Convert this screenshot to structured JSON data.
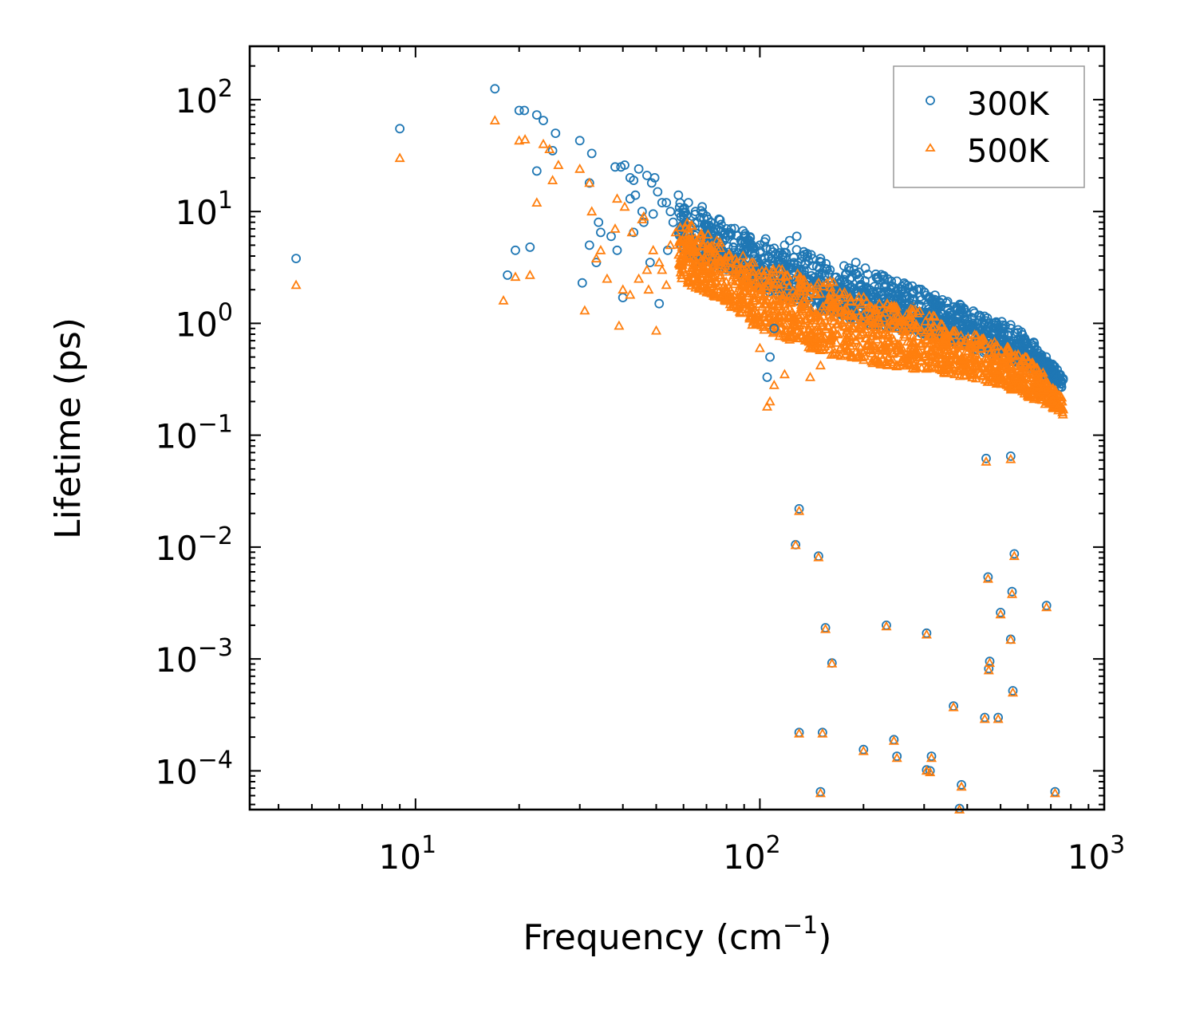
{
  "chart_data": {
    "type": "scatter",
    "title": "",
    "xlabel_text": "Frequency (cm",
    "xlabel_sup": "−1",
    "xlabel_close": ")",
    "ylabel": "Lifetime (ps)",
    "xscale": "log",
    "yscale": "log",
    "xlim": [
      3.3,
      1000
    ],
    "ylim": [
      4.5e-05,
      300
    ],
    "x_tick_labels": [
      {
        "value": 10,
        "base": "10",
        "exp": "1"
      },
      {
        "value": 100,
        "base": "10",
        "exp": "2"
      },
      {
        "value": 1000,
        "base": "10",
        "exp": "3"
      }
    ],
    "y_tick_labels": [
      {
        "value": 100,
        "base": "10",
        "exp": "2"
      },
      {
        "value": 10,
        "base": "10",
        "exp": "1"
      },
      {
        "value": 1,
        "base": "10",
        "exp": "0"
      },
      {
        "value": 0.1,
        "base": "10",
        "exp": "−1"
      },
      {
        "value": 0.01,
        "base": "10",
        "exp": "−2"
      },
      {
        "value": 0.001,
        "base": "10",
        "exp": "−3"
      },
      {
        "value": 0.0001,
        "base": "10",
        "exp": "−4"
      }
    ],
    "legend_position": "top-right",
    "series": [
      {
        "name": "300K",
        "marker": "circle",
        "color": "#1f77b4",
        "points": [
          [
            4.5,
            3.8
          ],
          [
            9,
            55
          ],
          [
            17,
            125
          ],
          [
            18.5,
            2.7
          ],
          [
            19.5,
            4.5
          ],
          [
            20,
            80
          ],
          [
            20.7,
            80
          ],
          [
            21.5,
            4.8
          ],
          [
            22.5,
            73
          ],
          [
            22.5,
            23
          ],
          [
            23.5,
            65
          ],
          [
            25,
            35
          ],
          [
            25.5,
            50
          ],
          [
            30,
            43
          ],
          [
            30.5,
            2.3
          ],
          [
            32,
            18
          ],
          [
            32,
            5.0
          ],
          [
            32.5,
            33
          ],
          [
            33.5,
            3.5
          ],
          [
            34,
            8.0
          ],
          [
            34.5,
            6.5
          ],
          [
            37,
            6.0
          ],
          [
            38,
            25
          ],
          [
            38.5,
            4.5
          ],
          [
            39.5,
            25
          ],
          [
            40,
            1.7
          ],
          [
            40.5,
            26
          ],
          [
            42,
            20
          ],
          [
            42,
            13
          ],
          [
            43,
            19
          ],
          [
            43,
            6.5
          ],
          [
            43.5,
            14
          ],
          [
            44.5,
            24
          ],
          [
            45.5,
            10
          ],
          [
            46,
            8.0
          ],
          [
            47,
            21
          ],
          [
            48,
            3.5
          ],
          [
            48.5,
            18
          ],
          [
            49,
            9.5
          ],
          [
            49.5,
            20
          ],
          [
            50.5,
            15
          ],
          [
            51,
            1.5
          ],
          [
            52,
            12
          ],
          [
            53.5,
            12
          ],
          [
            54,
            4.5
          ],
          [
            55,
            10
          ],
          [
            56,
            8
          ],
          [
            58,
            14
          ],
          [
            59,
            9
          ],
          [
            62,
            12
          ],
          [
            65,
            10
          ],
          [
            68,
            11
          ],
          [
            72,
            8
          ],
          [
            80,
            7
          ],
          [
            90,
            6
          ],
          [
            100,
            5
          ],
          [
            105,
            0.33
          ],
          [
            107,
            0.5
          ],
          [
            110,
            0.9
          ],
          [
            118,
            5
          ],
          [
            122,
            5.5
          ],
          [
            128,
            6.0
          ],
          [
            150,
            3.8
          ],
          [
            190,
            3.5
          ],
          [
            240,
            2.0
          ],
          [
            280,
            1.6
          ],
          [
            330,
            1.4
          ],
          [
            400,
            1.1
          ],
          [
            455,
            1.05
          ],
          [
            535,
            0.97
          ],
          [
            600,
            0.6
          ],
          [
            700,
            0.38
          ],
          [
            760,
            0.32
          ],
          [
            454,
            0.062
          ],
          [
            535,
            0.065
          ],
          [
            130,
            0.022
          ],
          [
            127,
            0.0105
          ],
          [
            148,
            0.0083
          ],
          [
            548,
            0.0087
          ],
          [
            460,
            0.0054
          ],
          [
            540,
            0.004
          ],
          [
            500,
            0.0026
          ],
          [
            680,
            0.003
          ],
          [
            155,
            0.0019
          ],
          [
            233,
            0.002
          ],
          [
            305,
            0.0017
          ],
          [
            535,
            0.0015
          ],
          [
            162,
            0.00092
          ],
          [
            465,
            0.00095
          ],
          [
            462,
            0.00082
          ],
          [
            543,
            0.00052
          ],
          [
            365,
            0.00038
          ],
          [
            450,
            0.0003
          ],
          [
            492,
            0.0003
          ],
          [
            130,
            0.00022
          ],
          [
            152,
            0.00022
          ],
          [
            245,
            0.00019
          ],
          [
            200,
            0.000155
          ],
          [
            315,
            0.000135
          ],
          [
            250,
            0.000135
          ],
          [
            305,
            0.000102
          ],
          [
            312,
            0.0001
          ],
          [
            385,
            7.5e-05
          ],
          [
            150,
            6.5e-05
          ],
          [
            720,
            6.5e-05
          ],
          [
            380,
            4.6e-05
          ]
        ]
      },
      {
        "name": "500K",
        "marker": "triangle",
        "color": "#ff7f0e",
        "points": [
          [
            4.5,
            2.2
          ],
          [
            9,
            30
          ],
          [
            17,
            65
          ],
          [
            18,
            1.6
          ],
          [
            19.5,
            2.6
          ],
          [
            20,
            43
          ],
          [
            20.8,
            44
          ],
          [
            21.5,
            2.7
          ],
          [
            22.5,
            12
          ],
          [
            23.5,
            40
          ],
          [
            24.5,
            36
          ],
          [
            25,
            19
          ],
          [
            26,
            26
          ],
          [
            30,
            24
          ],
          [
            31,
            1.3
          ],
          [
            32,
            18
          ],
          [
            32.5,
            10
          ],
          [
            33.5,
            3.8
          ],
          [
            34.5,
            4.5
          ],
          [
            36,
            2.5
          ],
          [
            38,
            7
          ],
          [
            38.5,
            13
          ],
          [
            39,
            0.95
          ],
          [
            40,
            2.0
          ],
          [
            40.5,
            11
          ],
          [
            42,
            1.8
          ],
          [
            42.5,
            6.5
          ],
          [
            44.5,
            2.5
          ],
          [
            45.5,
            8.5
          ],
          [
            46,
            9
          ],
          [
            47,
            3.0
          ],
          [
            47.5,
            2.0
          ],
          [
            49,
            4.5
          ],
          [
            50,
            0.86
          ],
          [
            51,
            3.5
          ],
          [
            52,
            3.0
          ],
          [
            53.5,
            2.2
          ],
          [
            55,
            5.0
          ],
          [
            57,
            6.5
          ],
          [
            60,
            3.0
          ],
          [
            65,
            3.0
          ],
          [
            70,
            2.5
          ],
          [
            80,
            2.0
          ],
          [
            90,
            1.5
          ],
          [
            95,
            0.97
          ],
          [
            100,
            0.6
          ],
          [
            105,
            0.18
          ],
          [
            107,
            0.2
          ],
          [
            110,
            0.28
          ],
          [
            118,
            0.35
          ],
          [
            140,
            0.33
          ],
          [
            150,
            0.42
          ],
          [
            175,
            0.95
          ],
          [
            200,
            1.2
          ],
          [
            250,
            0.6
          ],
          [
            300,
            0.5
          ],
          [
            350,
            0.45
          ],
          [
            400,
            0.4
          ],
          [
            500,
            0.32
          ],
          [
            600,
            0.28
          ],
          [
            700,
            0.2
          ],
          [
            760,
            0.17
          ],
          [
            454,
            0.058
          ],
          [
            535,
            0.061
          ],
          [
            130,
            0.021
          ],
          [
            127,
            0.0104
          ],
          [
            148,
            0.0081
          ],
          [
            548,
            0.0083
          ],
          [
            460,
            0.0052
          ],
          [
            540,
            0.0038
          ],
          [
            500,
            0.0025
          ],
          [
            680,
            0.0029
          ],
          [
            155,
            0.00185
          ],
          [
            233,
            0.00195
          ],
          [
            305,
            0.00165
          ],
          [
            535,
            0.00148
          ],
          [
            162,
            0.00091
          ],
          [
            465,
            0.00092
          ],
          [
            462,
            0.00079
          ],
          [
            543,
            0.0005
          ],
          [
            365,
            0.00037
          ],
          [
            450,
            0.00029
          ],
          [
            492,
            0.00029
          ],
          [
            130,
            0.000215
          ],
          [
            152,
            0.000215
          ],
          [
            245,
            0.000185
          ],
          [
            200,
            0.00015
          ],
          [
            315,
            0.00013
          ],
          [
            250,
            0.00013
          ],
          [
            305,
            0.0001
          ],
          [
            312,
            9.7e-05
          ],
          [
            385,
            7.2e-05
          ],
          [
            150,
            6.3e-05
          ],
          [
            720,
            6.3e-05
          ],
          [
            380,
            4.5e-05
          ]
        ]
      }
    ],
    "dense_bands": [
      {
        "series": "300K",
        "x_range": [
          58,
          760
        ],
        "upper": [
          [
            58,
            13
          ],
          [
            80,
            8
          ],
          [
            100,
            6
          ],
          [
            150,
            4.0
          ],
          [
            200,
            3.2
          ],
          [
            300,
            2.0
          ],
          [
            400,
            1.4
          ],
          [
            500,
            1.1
          ],
          [
            600,
            0.8
          ],
          [
            700,
            0.45
          ],
          [
            760,
            0.34
          ]
        ],
        "lower": [
          [
            58,
            4.0
          ],
          [
            80,
            3.0
          ],
          [
            100,
            2.0
          ],
          [
            150,
            1.3
          ],
          [
            200,
            1.0
          ],
          [
            300,
            0.8
          ],
          [
            400,
            0.6
          ],
          [
            500,
            0.5
          ],
          [
            600,
            0.4
          ],
          [
            700,
            0.3
          ],
          [
            760,
            0.25
          ]
        ]
      },
      {
        "series": "500K",
        "x_range": [
          58,
          760
        ],
        "upper": [
          [
            58,
            9
          ],
          [
            80,
            5
          ],
          [
            100,
            3.5
          ],
          [
            150,
            2.6
          ],
          [
            200,
            2.0
          ],
          [
            300,
            1.3
          ],
          [
            400,
            0.9
          ],
          [
            500,
            0.7
          ],
          [
            600,
            0.55
          ],
          [
            700,
            0.3
          ],
          [
            760,
            0.22
          ]
        ],
        "lower": [
          [
            58,
            2.5
          ],
          [
            80,
            1.5
          ],
          [
            100,
            0.9
          ],
          [
            150,
            0.55
          ],
          [
            200,
            0.45
          ],
          [
            300,
            0.38
          ],
          [
            400,
            0.33
          ],
          [
            500,
            0.28
          ],
          [
            600,
            0.22
          ],
          [
            700,
            0.18
          ],
          [
            760,
            0.15
          ]
        ]
      }
    ]
  }
}
